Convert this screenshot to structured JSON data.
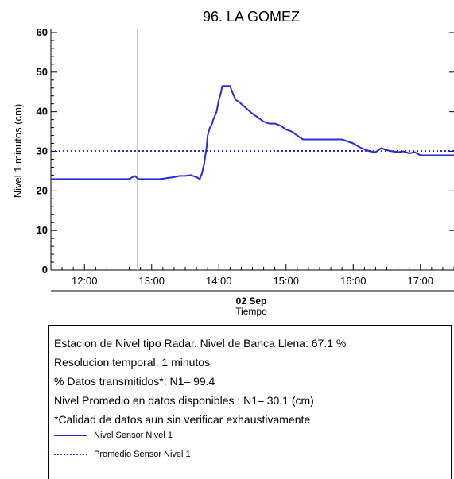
{
  "chart_data": {
    "type": "line",
    "title": "96. LA GOMEZ",
    "ylabel": "Nivel 1 minutos (cm)",
    "xlabel": "Tiempo",
    "date_label": "02 Sep",
    "x_units": "minutes since 00:00 on 02 Sep",
    "xlim": [
      690,
      1050
    ],
    "ylim": [
      0,
      61
    ],
    "x_ticks": [
      720,
      780,
      840,
      900,
      960,
      1020
    ],
    "x_tick_labels": [
      "12:00",
      "13:00",
      "14:00",
      "15:00",
      "16:00",
      "17:00"
    ],
    "y_ticks": [
      0,
      10,
      20,
      30,
      40,
      50,
      60
    ],
    "y_tick_labels": [
      "0",
      "10",
      "20",
      "30",
      "40",
      "50",
      "60"
    ],
    "gap_marker_x": 767,
    "grid": false,
    "series": [
      {
        "name": "Nivel Sensor Nivel 1",
        "style": "solid",
        "color": "#2b2bd6",
        "x": [
          690,
          700,
          710,
          720,
          730,
          740,
          750,
          760,
          763,
          765,
          768,
          771,
          778,
          788,
          795,
          800,
          805,
          810,
          815,
          820,
          823,
          825,
          827,
          829,
          830,
          832,
          834,
          835,
          838,
          840,
          842,
          843,
          845,
          848,
          850,
          852,
          855,
          858,
          862,
          866,
          870,
          875,
          880,
          885,
          890,
          895,
          900,
          905,
          910,
          915,
          920,
          930,
          940,
          945,
          950,
          955,
          960,
          963,
          966,
          970,
          975,
          980,
          985,
          990,
          995,
          1000,
          1005,
          1010,
          1015,
          1020,
          1030,
          1040,
          1050
        ],
        "y": [
          23,
          23,
          23,
          23,
          23,
          23,
          23,
          23,
          23.5,
          23.8,
          23,
          23,
          23,
          23,
          23.3,
          23.5,
          23.8,
          23.8,
          24,
          23.5,
          23,
          24.5,
          27,
          31,
          34,
          36,
          37,
          38,
          40,
          43,
          45,
          46.5,
          46.5,
          46.5,
          46.5,
          45,
          43,
          42.5,
          41.5,
          40.5,
          39.5,
          38.5,
          37.5,
          37,
          37,
          36.5,
          35.5,
          35,
          34,
          33,
          33,
          33,
          33,
          33,
          33,
          32.5,
          32,
          31.5,
          31,
          30.5,
          30,
          29.8,
          30.8,
          30.3,
          30,
          29.8,
          30,
          29.5,
          29.8,
          29,
          29,
          29,
          29
        ]
      },
      {
        "name": "Promedio Sensor Nivel 1",
        "style": "dotted",
        "color": "#2b2bd6",
        "x": [
          690,
          1050
        ],
        "y": [
          30.1,
          30.1
        ]
      }
    ]
  },
  "info": {
    "lines": [
      "Estacion de Nivel tipo Radar. Nivel de Banca Llena: 67.1 %",
      "Resolucion temporal: 1 minutos",
      "% Datos transmitidos*: N1– 99.4",
      "Nivel Promedio en datos disponibles : N1– 30.1 (cm)",
      "*Calidad de datos aun sin verificar exhaustivamente"
    ],
    "legend": [
      {
        "label": "Nivel Sensor Nivel 1",
        "style": "solid"
      },
      {
        "label": "Promedio Sensor Nivel 1",
        "style": "dotted"
      }
    ]
  }
}
